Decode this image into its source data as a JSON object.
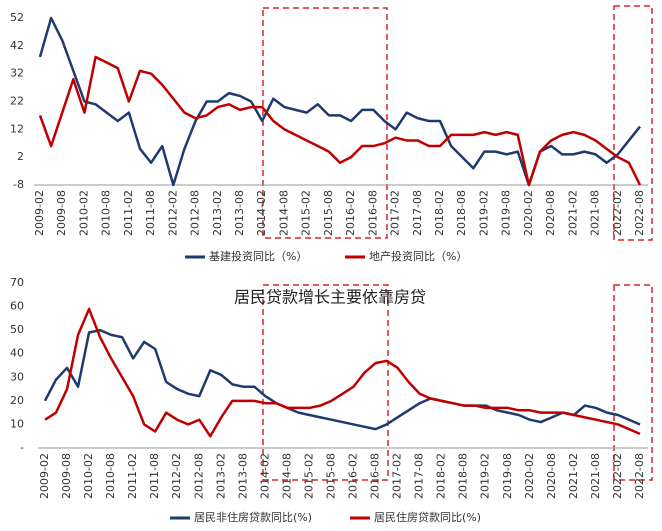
{
  "chart_data": [
    {
      "type": "line",
      "categories": [
        "2009-02",
        null,
        "2009-08",
        null,
        "2010-02",
        null,
        "2010-08",
        null,
        "2011-02",
        null,
        "2011-08",
        null,
        "2012-02",
        null,
        "2012-08",
        null,
        "2013-02",
        null,
        "2013-08",
        null,
        "2014-02",
        null,
        "2014-08",
        null,
        "2015-02",
        null,
        "2015-08",
        null,
        "2016-02",
        null,
        "2016-08",
        null,
        "2017-02",
        null,
        "2017-08",
        null,
        "2018-02",
        null,
        "2018-08",
        null,
        "2019-02",
        null,
        "2019-08",
        null,
        "2020-02",
        null,
        "2020-08",
        null,
        "2021-02",
        null,
        "2021-08",
        null,
        "2022-02",
        null,
        "2022-08"
      ],
      "series": [
        {
          "name": "基建投资同比（%）",
          "color": "#1f3a6e",
          "values": [
            38,
            52,
            44,
            33,
            22,
            21,
            18,
            15,
            18,
            5,
            0,
            6,
            -8,
            5,
            15,
            22,
            22,
            25,
            24,
            22,
            15,
            23,
            20,
            19,
            18,
            21,
            17,
            17,
            15,
            19,
            19,
            15,
            12,
            18,
            16,
            15,
            15,
            6,
            2,
            -2,
            4,
            4,
            3,
            4,
            -8,
            4,
            6,
            3,
            3,
            4,
            3,
            0,
            3,
            8,
            13
          ]
        },
        {
          "name": "地产投资同比（%）",
          "color": "#c00000",
          "values": [
            17,
            6,
            18,
            30,
            18,
            38,
            36,
            34,
            22,
            33,
            32,
            28,
            23,
            18,
            16,
            17,
            20,
            21,
            19,
            20,
            20,
            15,
            12,
            10,
            8,
            6,
            4,
            0,
            2,
            6,
            6,
            7,
            9,
            8,
            8,
            6,
            6,
            10,
            10,
            10,
            11,
            10,
            11,
            10,
            -8,
            4,
            8,
            10,
            11,
            10,
            8,
            5,
            2,
            0,
            -8
          ]
        }
      ],
      "ylim": [
        -8,
        52
      ],
      "yticks": [
        -8,
        2,
        12,
        22,
        32,
        42,
        52
      ],
      "grid": false,
      "legend": "bottom"
    },
    {
      "type": "line",
      "title": "居民贷款增长主要依靠房贷",
      "categories": [
        "2009-02",
        null,
        "2009-08",
        null,
        "2010-02",
        null,
        "2010-08",
        null,
        "2011-02",
        null,
        "2011-08",
        null,
        "2012-02",
        null,
        "2012-08",
        null,
        "2013-02",
        null,
        "2013-08",
        null,
        "2014-02",
        null,
        "2014-08",
        null,
        "2015-02",
        null,
        "2015-08",
        null,
        "2016-02",
        null,
        "2016-08",
        null,
        "2017-02",
        null,
        "2017-08",
        null,
        "2018-02",
        null,
        "2018-08",
        null,
        "2019-02",
        null,
        "2019-08",
        null,
        "2020-02",
        null,
        "2020-08",
        null,
        "2021-02",
        null,
        "2021-08",
        null,
        "2022-02",
        null,
        "2022-08"
      ],
      "series": [
        {
          "name": "居民非住房贷款同比(%)",
          "color": "#1f3a6e",
          "values": [
            20,
            29,
            34,
            26,
            49,
            50,
            48,
            47,
            38,
            45,
            42,
            28,
            25,
            23,
            22,
            33,
            31,
            27,
            26,
            26,
            22,
            19,
            17,
            15,
            14,
            13,
            12,
            11,
            10,
            9,
            8,
            10,
            13,
            16,
            19,
            21,
            20,
            19,
            18,
            18,
            18,
            16,
            15,
            14,
            12,
            11,
            13,
            15,
            14,
            18,
            17,
            15,
            14,
            12,
            10
          ]
        },
        {
          "name": "居民住房贷款同比(%)",
          "color": "#c00000",
          "values": [
            12,
            15,
            25,
            48,
            59,
            47,
            38,
            30,
            22,
            10,
            7,
            15,
            12,
            10,
            12,
            5,
            13,
            20,
            20,
            20,
            19,
            19,
            17,
            17,
            17,
            18,
            20,
            23,
            26,
            32,
            36,
            37,
            34,
            28,
            23,
            21,
            20,
            19,
            18,
            18,
            17,
            17,
            17,
            16,
            16,
            15,
            15,
            15,
            14,
            13,
            12,
            11,
            10,
            8,
            6
          ]
        }
      ],
      "ylim": [
        0,
        70
      ],
      "yticks": [
        {
          "value": 0,
          "label": "-"
        },
        10,
        20,
        30,
        40,
        50,
        60,
        70
      ],
      "grid": false,
      "legend": "bottom"
    }
  ]
}
